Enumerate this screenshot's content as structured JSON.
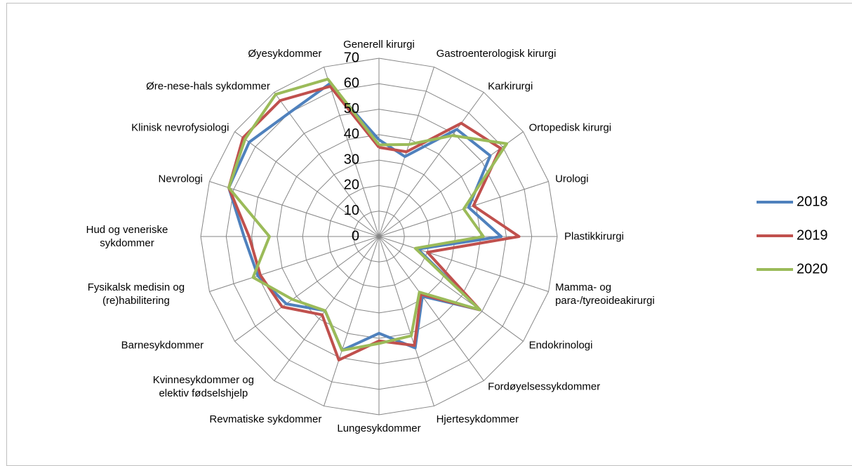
{
  "chart_data": {
    "type": "radar",
    "categories": [
      "Generell kirurgi",
      "Gastroenterologisk kirurgi",
      "Karkirurgi",
      "Ortopedisk kirurgi",
      "Urologi",
      "Plastikkirurgi",
      "Mamma- og para-/tyreoideakirurgi",
      "Endokrinologi",
      "Fordøyelsessykdommer",
      "Hjertesykdommer",
      "Lungesykdommer",
      "Revmatiske sykdommer",
      "Kvinnesykdommer og elektiv fødselshjelp",
      "Barnesykdommer",
      "Fysikalsk medisin og (re)habilitering",
      "Hud og veneriske sykdommer",
      "Nevrologi",
      "Klinisk nevrofysiologi",
      "Øre-nese-hals sykdommer",
      "Øyesykdommer"
    ],
    "series": [
      {
        "name": "2018",
        "color": "#4f81bd",
        "values": [
          38,
          33,
          52,
          54,
          37,
          48,
          16,
          49,
          29,
          46,
          38,
          47,
          36,
          45,
          50,
          53,
          62,
          63,
          60,
          63
        ]
      },
      {
        "name": "2019",
        "color": "#c0504d",
        "values": [
          35,
          35,
          55,
          59,
          39,
          55,
          20,
          49,
          28,
          45,
          41,
          51,
          38,
          47,
          49,
          51,
          62,
          66,
          66,
          62
        ]
      },
      {
        "name": "2020",
        "color": "#9bbb59",
        "values": [
          36,
          38,
          49,
          62,
          35,
          41,
          15,
          49,
          27,
          41,
          42,
          47,
          36,
          42,
          52,
          43,
          62,
          65,
          69,
          65
        ]
      }
    ],
    "ylim": [
      0,
      70
    ],
    "yticks": [
      0,
      10,
      20,
      30,
      40,
      50,
      60,
      70
    ],
    "grid": true,
    "legend": "right"
  }
}
